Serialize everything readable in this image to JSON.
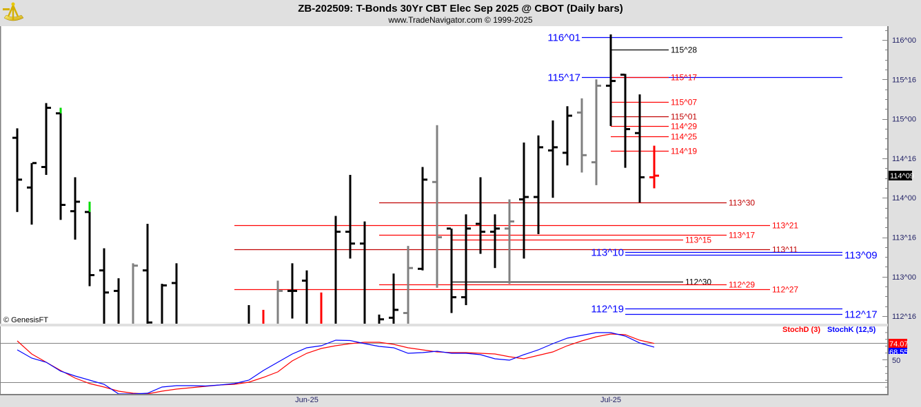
{
  "header": {
    "title": "ZB-202509:  T-Bonds 30Yr CBT Elec Sep 2025 @ CBOT  (Daily bars)",
    "subtitle": "www.TradeNavigator.com © 1999-2025",
    "logo": "sextant-logo"
  },
  "copyright": "© GenesisFT",
  "colors": {
    "black": "#000000",
    "gray": "#808080",
    "red": "#ff0000",
    "darkred": "#c00000",
    "blue": "#0000ff",
    "green": "#00dd00",
    "axis_text": "#222266"
  },
  "chart_data": [
    {
      "type": "ohlc",
      "title": "ZB-202509:  T-Bonds 30Yr CBT Elec Sep 2025 @ CBOT  (Daily bars)",
      "price_format": "points^32nds",
      "ylim": [
        112.39,
        116.3
      ],
      "y_ticks": [
        "116^00",
        "115^16",
        "115^00",
        "114^16",
        "114^00",
        "113^16",
        "113^00",
        "112^16"
      ],
      "x_labels": [
        {
          "bar": 20,
          "label": "Jun-25"
        },
        {
          "bar": 41,
          "label": "Jul-25"
        }
      ],
      "last_price": "114^09",
      "bars": [
        {
          "o": 114.76,
          "h": 114.88,
          "l": 113.82,
          "c": 114.23,
          "color": "black"
        },
        {
          "o": 114.13,
          "h": 114.44,
          "l": 113.66,
          "c": 114.44,
          "color": "black"
        },
        {
          "o": 114.39,
          "h": 115.2,
          "l": 114.29,
          "c": 115.14,
          "color": "black"
        },
        {
          "o": 115.07,
          "h": 115.14,
          "l": 113.72,
          "c": 113.91,
          "color": "black",
          "top_color": "green"
        },
        {
          "o": 113.83,
          "h": 114.26,
          "l": 113.47,
          "c": 113.95,
          "color": "black"
        },
        {
          "o": 113.82,
          "h": 113.95,
          "l": 112.88,
          "c": 113.02,
          "color": "black",
          "top_color": "green"
        },
        {
          "o": 113.08,
          "h": 113.36,
          "l": 112.3,
          "c": 112.8,
          "color": "black"
        },
        {
          "o": 112.82,
          "h": 112.98,
          "l": 112.3,
          "c": 112.35,
          "color": "black"
        },
        {
          "o": 112.35,
          "h": 113.17,
          "l": 112.3,
          "c": 113.14,
          "color": "gray"
        },
        {
          "o": 113.08,
          "h": 113.67,
          "l": 112.3,
          "c": 112.42,
          "color": "black"
        },
        {
          "o": 112.35,
          "h": 112.91,
          "l": 112.3,
          "c": 112.89,
          "color": "black"
        },
        {
          "o": 112.92,
          "h": 113.17,
          "l": 112.3,
          "c": 112.35,
          "color": "black"
        },
        null,
        null,
        null,
        null,
        {
          "o": 112.35,
          "h": 112.64,
          "l": 112.3,
          "c": 112.35,
          "color": "black"
        },
        {
          "o": 112.35,
          "h": 112.58,
          "l": 112.3,
          "c": 112.35,
          "color": "red"
        },
        {
          "o": 112.35,
          "h": 112.95,
          "l": 112.3,
          "c": 112.82,
          "color": "gray"
        },
        {
          "o": 112.82,
          "h": 113.17,
          "l": 112.47,
          "c": 112.82,
          "color": "black"
        },
        {
          "o": 112.95,
          "h": 113.08,
          "l": 112.3,
          "c": 112.35,
          "color": "black"
        },
        {
          "o": 112.35,
          "h": 112.8,
          "l": 112.3,
          "c": 112.35,
          "color": "red"
        },
        {
          "o": 112.35,
          "h": 113.77,
          "l": 112.3,
          "c": 113.57,
          "color": "black"
        },
        {
          "o": 113.57,
          "h": 114.29,
          "l": 113.23,
          "c": 113.42,
          "color": "black"
        },
        {
          "o": 113.42,
          "h": 113.7,
          "l": 112.3,
          "c": 112.35,
          "color": "black"
        },
        {
          "o": 112.35,
          "h": 112.52,
          "l": 112.3,
          "c": 112.46,
          "color": "black"
        },
        {
          "o": 112.48,
          "h": 113.04,
          "l": 112.3,
          "c": 112.58,
          "color": "black"
        },
        {
          "o": 112.54,
          "h": 113.39,
          "l": 112.3,
          "c": 113.11,
          "color": "gray"
        },
        {
          "o": 113.1,
          "h": 114.39,
          "l": 113.08,
          "c": 114.23,
          "color": "black"
        },
        {
          "o": 114.2,
          "h": 114.92,
          "l": 112.86,
          "c": 113.5,
          "color": "gray"
        },
        {
          "o": 113.61,
          "h": 113.61,
          "l": 112.54,
          "c": 112.74,
          "color": "black"
        },
        {
          "o": 112.74,
          "h": 113.79,
          "l": 112.64,
          "c": 113.61,
          "color": "black"
        },
        {
          "o": 113.67,
          "h": 114.26,
          "l": 113.29,
          "c": 113.57,
          "color": "black"
        },
        {
          "o": 113.57,
          "h": 113.79,
          "l": 113.11,
          "c": 113.61,
          "color": "black"
        },
        {
          "o": 113.61,
          "h": 113.98,
          "l": 112.91,
          "c": 113.7,
          "color": "gray"
        },
        {
          "o": 113.98,
          "h": 114.7,
          "l": 113.23,
          "c": 114.01,
          "color": "black"
        },
        {
          "o": 114.01,
          "h": 114.79,
          "l": 113.54,
          "c": 114.64,
          "color": "black"
        },
        {
          "o": 114.6,
          "h": 114.98,
          "l": 114.0,
          "c": 114.64,
          "color": "black"
        },
        {
          "o": 114.57,
          "h": 115.16,
          "l": 114.41,
          "c": 115.04,
          "color": "black"
        },
        {
          "o": 115.08,
          "h": 115.26,
          "l": 114.32,
          "c": 114.54,
          "color": "gray"
        },
        {
          "o": 114.45,
          "h": 115.5,
          "l": 114.16,
          "c": 115.42,
          "color": "gray"
        },
        {
          "o": 115.42,
          "h": 116.07,
          "l": 114.91,
          "c": 115.48,
          "color": "black"
        },
        {
          "o": 115.56,
          "h": 115.57,
          "l": 114.38,
          "c": 114.87,
          "color": "black"
        },
        {
          "o": 114.82,
          "h": 115.31,
          "l": 113.94,
          "c": 114.26,
          "color": "black"
        },
        {
          "o": 114.26,
          "h": 114.66,
          "l": 114.12,
          "c": 114.28,
          "color": "red"
        }
      ],
      "levels": [
        {
          "label": "116^01",
          "color": "blue",
          "start_bar": 39,
          "end_bar": 57,
          "label_side": "left"
        },
        {
          "label": "115^28",
          "color": "black",
          "start_bar": 41,
          "end_bar": 45,
          "label_side": "right"
        },
        {
          "label": "115^17",
          "color": "blue",
          "start_bar": 39,
          "end_bar": 57,
          "label_side": "left"
        },
        {
          "label": "115^17",
          "color": "red",
          "start_bar": 41,
          "end_bar": 45,
          "label_side": "right"
        },
        {
          "label": "115^07",
          "color": "red",
          "start_bar": 41,
          "end_bar": 45,
          "label_side": "right"
        },
        {
          "label": "115^01",
          "color": "darkred",
          "start_bar": 41,
          "end_bar": 45,
          "label_side": "right"
        },
        {
          "label": "114^29",
          "color": "red",
          "start_bar": 41,
          "end_bar": 45,
          "label_side": "right"
        },
        {
          "label": "114^25",
          "color": "red",
          "start_bar": 41,
          "end_bar": 45,
          "label_side": "right"
        },
        {
          "label": "114^19",
          "color": "red",
          "start_bar": 41,
          "end_bar": 45,
          "label_side": "right"
        },
        {
          "label": "113^30",
          "color": "darkred",
          "start_bar": 25,
          "end_bar": 49,
          "label_side": "right"
        },
        {
          "label": "113^21",
          "color": "red",
          "start_bar": 15,
          "end_bar": 52,
          "label_side": "right"
        },
        {
          "label": "113^17",
          "color": "red",
          "start_bar": 25,
          "end_bar": 49,
          "label_side": "right"
        },
        {
          "label": "113^15",
          "color": "red",
          "start_bar": 30,
          "end_bar": 46,
          "label_side": "right"
        },
        {
          "label": "113^11",
          "color": "darkred",
          "start_bar": 15,
          "end_bar": 52,
          "label_side": "right"
        },
        {
          "label": "113^10",
          "color": "blue",
          "start_bar": 42,
          "end_bar": 57,
          "label_side": "left"
        },
        {
          "label": "113^09",
          "color": "blue",
          "start_bar": 42,
          "end_bar": 57,
          "label_side": "right"
        },
        {
          "label": "112^30",
          "color": "black",
          "start_bar": 30,
          "end_bar": 46,
          "label_side": "right"
        },
        {
          "label": "112^29",
          "color": "red",
          "start_bar": 25,
          "end_bar": 49,
          "label_side": "right"
        },
        {
          "label": "112^27",
          "color": "red",
          "start_bar": 15,
          "end_bar": 52,
          "label_side": "right"
        },
        {
          "label": "112^19",
          "color": "blue",
          "start_bar": 42,
          "end_bar": 57,
          "label_side": "left"
        },
        {
          "label": "112^17",
          "color": "blue",
          "start_bar": 42,
          "end_bar": 57,
          "label_side": "right"
        }
      ]
    },
    {
      "type": "line",
      "ylim": [
        0,
        100
      ],
      "y_ticks": [
        "50"
      ],
      "series": [
        {
          "name": "StochD (3)",
          "color": "#ff0000",
          "last_label": "74.07",
          "values": [
            77.8,
            58.6,
            46.5,
            34.3,
            23.2,
            15.2,
            10.1,
            4.0,
            1.0,
            0,
            4.0,
            7.1,
            9.1,
            11.1,
            13.1,
            14.1,
            17.2,
            24.2,
            32.3,
            48.5,
            59.6,
            66.7,
            70.7,
            73.7,
            75.8,
            75.8,
            72.7,
            67.7,
            64.6,
            61.6,
            60.6,
            60.6,
            59.6,
            58.6,
            54.5,
            51.5,
            56.6,
            61.6,
            70.7,
            77.8,
            83.8,
            87.9,
            86.9,
            78.8,
            74.07
          ]
        },
        {
          "name": "StochK (12,5)",
          "color": "#0000ff",
          "last_label": "68.55",
          "values": [
            64.6,
            52.5,
            46.5,
            33.3,
            26.3,
            20.2,
            14.1,
            0,
            0,
            1.0,
            10.1,
            12.1,
            12.1,
            11.6,
            13.1,
            15.2,
            20.2,
            34.3,
            46.5,
            58.6,
            67.7,
            70.7,
            78.8,
            78.3,
            73.7,
            69.7,
            67.7,
            59.6,
            60.6,
            62.6,
            59.6,
            59.6,
            57.6,
            51.5,
            49.5,
            57.6,
            64.6,
            73.7,
            81.8,
            85.9,
            89.9,
            89.9,
            84.8,
            74.7,
            68.55
          ]
        }
      ]
    }
  ]
}
